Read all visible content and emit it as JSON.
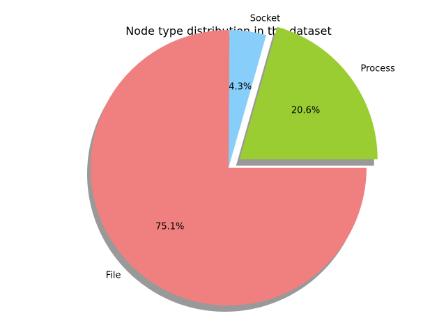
{
  "chart_data": {
    "type": "pie",
    "title": "Node type distribution in the dataset",
    "categories": [
      "Process",
      "Socket",
      "File"
    ],
    "values": [
      20.6,
      4.3,
      75.1
    ],
    "percent_labels": [
      "20.6%",
      "4.3%",
      "75.1%"
    ],
    "colors": [
      "#9acd32",
      "#87cefa",
      "#f08080"
    ],
    "explode": [
      0.1,
      0,
      0
    ],
    "shadow": true,
    "start_angle_deg": 0,
    "counterclockwise": true
  }
}
